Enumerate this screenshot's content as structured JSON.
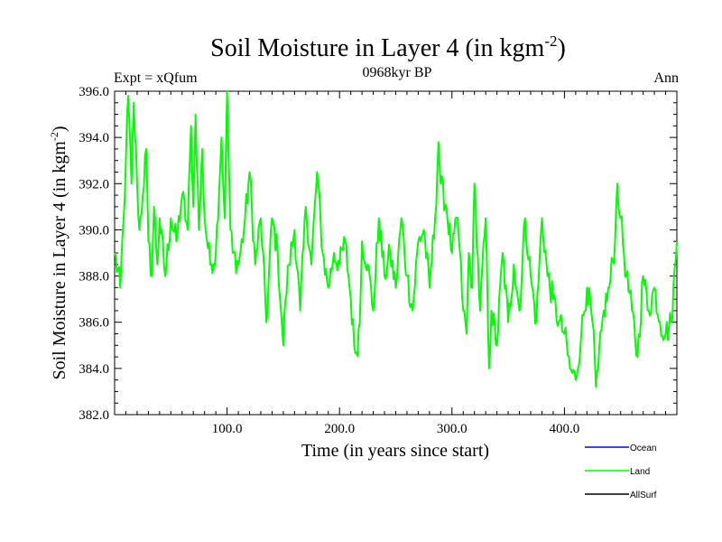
{
  "chart_data": {
    "type": "line",
    "title_main": "Soil Moisture in Layer 4 (in kgm",
    "title_sup": "-2",
    "title_close": ")",
    "subtitle_left": "Expt = xQfum",
    "subtitle_center": "0968kyr BP",
    "subtitle_right": "Ann",
    "xlabel": "Time (in years since start)",
    "ylabel_main": "Soil Moisture in Layer 4 (in kgm",
    "ylabel_sup": "-2",
    "ylabel_close": ")",
    "xlim": [
      0,
      500
    ],
    "ylim": [
      382,
      396
    ],
    "x_ticks": [
      100,
      200,
      300,
      400
    ],
    "x_tick_labels": [
      "100.0",
      "200.0",
      "300.0",
      "400.0"
    ],
    "y_ticks": [
      382,
      384,
      386,
      388,
      390,
      392,
      394,
      396
    ],
    "y_tick_labels": [
      "382.0",
      "384.0",
      "386.0",
      "388.0",
      "390.0",
      "392.0",
      "394.0",
      "396.0"
    ],
    "legend": [
      {
        "name": "Ocean",
        "color": "#0000ff"
      },
      {
        "name": "Land",
        "color": "#00ff00"
      },
      {
        "name": "AllSurf",
        "color": "#000000"
      }
    ],
    "series": [
      {
        "name": "Land",
        "color": "#00ff00",
        "x": [
          0,
          5,
          8,
          10,
          12,
          15,
          17,
          20,
          22,
          25,
          28,
          30,
          33,
          35,
          38,
          40,
          45,
          50,
          55,
          60,
          65,
          68,
          70,
          72,
          75,
          78,
          80,
          85,
          90,
          95,
          98,
          100,
          103,
          105,
          110,
          115,
          120,
          125,
          130,
          135,
          140,
          145,
          148,
          150,
          152,
          155,
          160,
          165,
          170,
          175,
          180,
          185,
          190,
          195,
          200,
          205,
          210,
          213,
          215,
          218,
          220,
          225,
          230,
          235,
          240,
          245,
          250,
          255,
          260,
          265,
          270,
          275,
          280,
          285,
          288,
          290,
          295,
          300,
          305,
          310,
          313,
          315,
          318,
          320,
          325,
          330,
          333,
          335,
          340,
          345,
          350,
          355,
          360,
          365,
          370,
          375,
          380,
          385,
          390,
          395,
          400,
          405,
          410,
          415,
          420,
          425,
          428,
          430,
          435,
          440,
          445,
          447,
          450,
          455,
          460,
          465,
          470,
          475,
          480,
          485,
          490,
          495,
          500
        ],
        "values": [
          389.0,
          387.5,
          390.5,
          393.0,
          395.8,
          392.0,
          395.5,
          392.0,
          390.0,
          391.5,
          393.5,
          389.5,
          388.0,
          391.0,
          388.5,
          390.5,
          388.0,
          390.5,
          389.5,
          391.5,
          390.0,
          394.5,
          391.0,
          395.0,
          390.0,
          393.5,
          390.5,
          388.5,
          389.0,
          394.0,
          390.5,
          396.0,
          390.0,
          389.0,
          388.5,
          390.0,
          392.5,
          388.5,
          390.5,
          386.0,
          390.5,
          389.0,
          386.5,
          385.0,
          387.0,
          388.5,
          390.0,
          386.5,
          391.0,
          388.5,
          392.5,
          389.0,
          387.5,
          389.0,
          388.5,
          389.5,
          387.0,
          385.0,
          384.7,
          386.0,
          389.5,
          388.5,
          386.5,
          390.5,
          388.0,
          389.0,
          387.5,
          390.5,
          388.0,
          386.5,
          389.5,
          390.0,
          387.5,
          390.5,
          393.8,
          392.0,
          391.0,
          389.0,
          390.5,
          386.5,
          385.5,
          389.0,
          387.5,
          392.0,
          386.5,
          390.5,
          384.0,
          386.5,
          385.0,
          389.0,
          386.0,
          388.5,
          386.5,
          390.5,
          388.0,
          386.0,
          390.5,
          388.0,
          387.0,
          386.0,
          385.5,
          384.0,
          383.5,
          385.5,
          387.5,
          386.0,
          383.2,
          384.0,
          386.5,
          387.5,
          389.5,
          392.0,
          390.5,
          388.0,
          386.5,
          384.5,
          388.0,
          386.5,
          387.5,
          386.0,
          385.5,
          386.0,
          389.5
        ]
      }
    ]
  }
}
